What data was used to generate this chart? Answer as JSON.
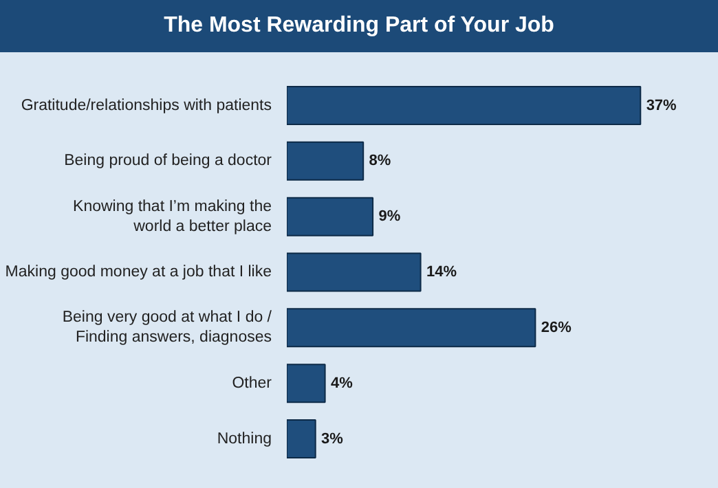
{
  "chart_data": {
    "type": "bar",
    "orientation": "horizontal",
    "title": "The Most Rewarding Part of Your Job",
    "categories": [
      "Gratitude/relationships with patients",
      "Being proud of being a doctor",
      "Knowing that I’m making the\nworld a better place",
      "Making good money at a job that I like",
      "Being very good at what I do /\nFinding answers, diagnoses",
      "Other",
      "Nothing"
    ],
    "values": [
      37,
      8,
      9,
      14,
      26,
      4,
      3
    ],
    "value_labels": [
      "37%",
      "8%",
      "9%",
      "14%",
      "26%",
      "4%",
      "3%"
    ],
    "color": "#1f4e7d",
    "grid": false,
    "tick_labels": "y"
  }
}
